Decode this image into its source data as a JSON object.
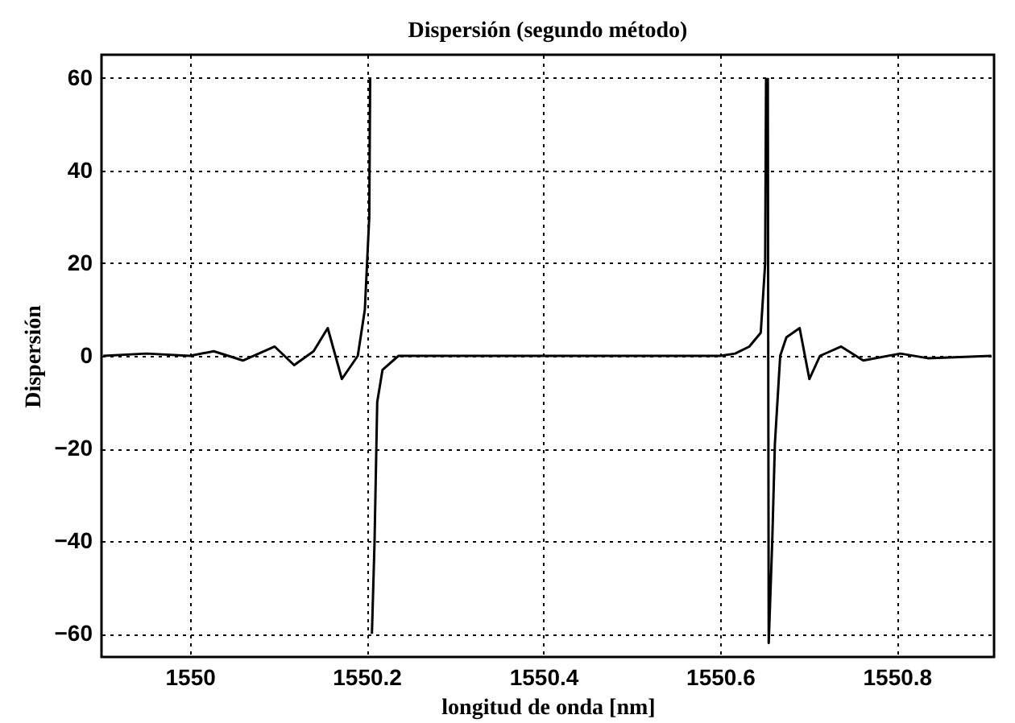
{
  "chart_data": {
    "type": "line",
    "title": "Dispersión (segundo método)",
    "xlabel": "longitud de onda [nm]",
    "ylabel": "Dispersión",
    "x": [
      1549.902,
      1549.951,
      1550.0,
      1550.027,
      1550.06,
      1550.096,
      1550.118,
      1550.14,
      1550.156,
      1550.172,
      1550.19,
      1550.198,
      1550.203,
      1550.204,
      1550.205,
      1550.206,
      1550.209,
      1550.212,
      1550.218,
      1550.236,
      1550.3,
      1550.4,
      1550.5,
      1550.6,
      1550.617,
      1550.633,
      1550.646,
      1550.651,
      1550.652,
      1550.653,
      1550.654,
      1550.655,
      1550.659,
      1550.662,
      1550.668,
      1550.675,
      1550.69,
      1550.701,
      1550.713,
      1550.737,
      1550.762,
      1550.804,
      1550.835,
      1550.907
    ],
    "series": [
      {
        "color": "#000000",
        "values": [
          0,
          0.5,
          0,
          1,
          -1,
          2,
          -2,
          1,
          6,
          -5,
          0,
          10,
          30,
          60,
          null,
          -60,
          -40,
          -10,
          -3,
          0,
          0,
          0,
          0,
          0,
          0.5,
          2,
          5,
          20,
          60,
          null,
          60,
          -62,
          -40,
          -19,
          0,
          4,
          6,
          -5,
          0,
          2,
          -1,
          0.5,
          -0.5,
          0
        ]
      }
    ],
    "xlim": [
      1549.9,
      1550.91
    ],
    "ylim": [
      -65,
      65
    ],
    "xticks": [
      1550,
      1550.2,
      1550.4,
      1550.6,
      1550.8
    ],
    "yticks": [
      -60,
      -40,
      -20,
      0,
      20,
      40,
      60
    ],
    "grid": true
  }
}
